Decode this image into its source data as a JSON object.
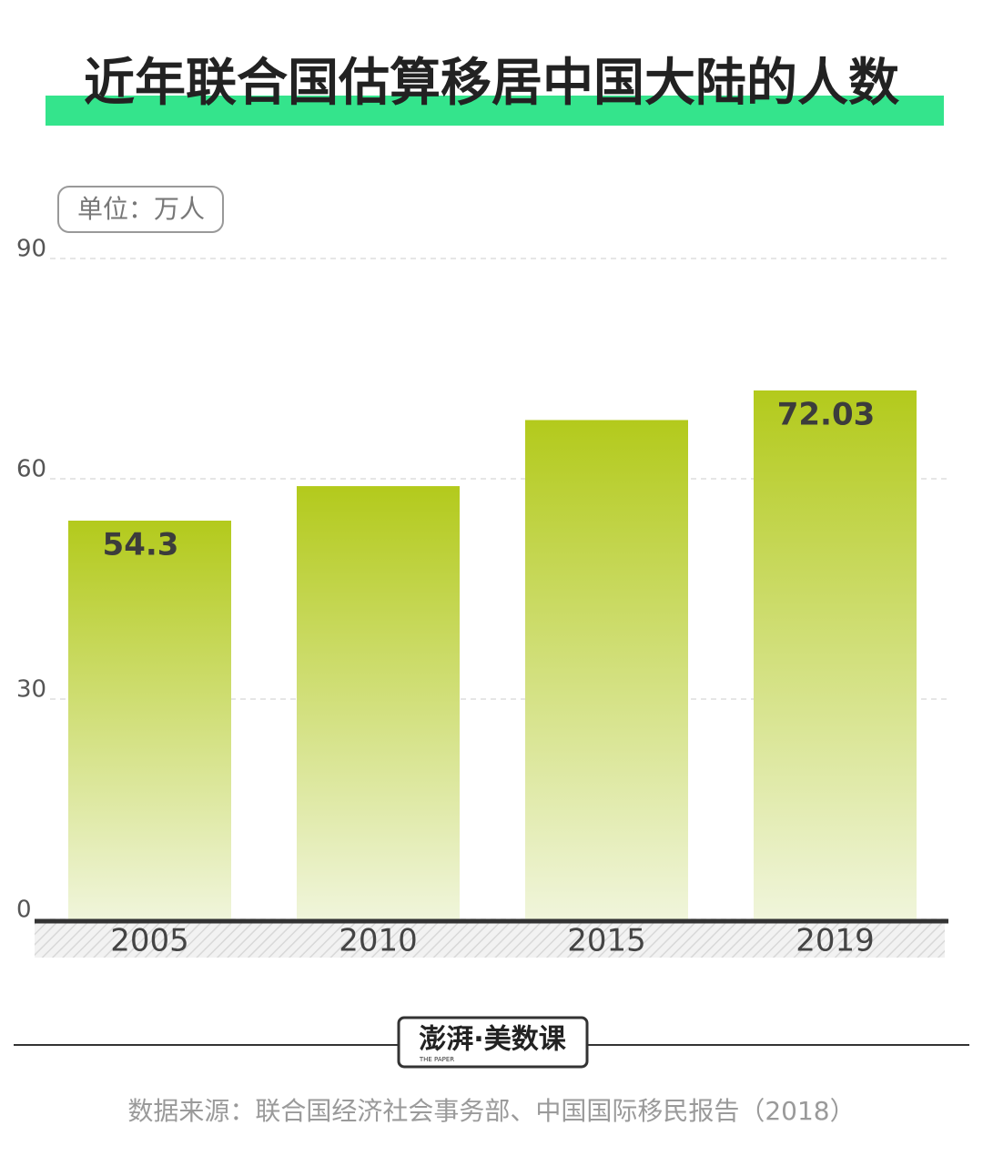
{
  "chart_data": {
    "type": "bar",
    "title": "近年联合国估算移居中国大陆的人数",
    "unit": "单位：万人",
    "categories": [
      "2005",
      "2010",
      "2015",
      "2019"
    ],
    "values": [
      54.3,
      59,
      68,
      72.03
    ],
    "value_labels": [
      "54.3",
      null,
      null,
      "72.03"
    ],
    "ylim": [
      0,
      90
    ],
    "yticks": [
      0,
      30,
      60,
      90
    ],
    "grid": true,
    "source": "数据来源：联合国经济社会事务部、中国国际移民报告（2018）"
  },
  "logo": {
    "name": "澎湃·美数课",
    "sub": "THE PAPER"
  }
}
